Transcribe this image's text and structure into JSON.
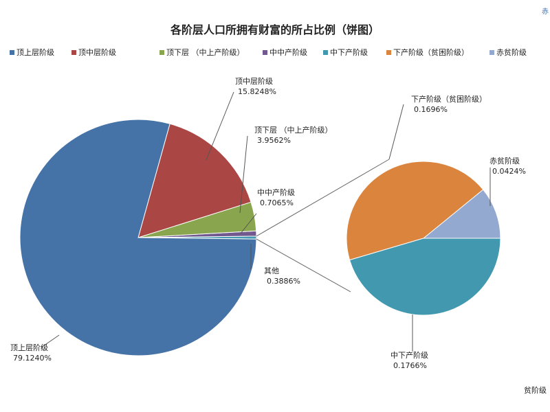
{
  "chart_data": {
    "type": "pie",
    "title": "各阶层人口所拥有财富的所占比例（饼图）",
    "legend": [
      "顶上层阶级",
      "顶中层阶级",
      "顶下层 （中上产阶级）",
      "中中产阶级",
      "中下产阶级",
      "下产阶级（贫困阶级）",
      "赤贫阶级"
    ],
    "legend_placement": "top",
    "main_pie": {
      "slices": [
        {
          "label": "顶上层阶级",
          "value_text": "79.1240%",
          "value": 79.124,
          "color": "#4572A7"
        },
        {
          "label": "顶中层阶级",
          "value_text": "15.8248%",
          "value": 15.8248,
          "color": "#AA4643"
        },
        {
          "label": "顶下层 （中上产阶级）",
          "value_text": "3.9562%",
          "value": 3.9562,
          "color": "#89A54E"
        },
        {
          "label": "中中产阶级",
          "value_text": "0.7065%",
          "value": 0.7065,
          "color": "#71588F"
        },
        {
          "label": "其他",
          "value_text": "0.3886%",
          "value": 0.3886,
          "color": "#4198AF"
        }
      ]
    },
    "secondary_pie": {
      "slices": [
        {
          "label": "中下产阶级",
          "value_text": "0.1766%",
          "value": 0.1766,
          "color": "#4198AF"
        },
        {
          "label": "下产阶级（贫困阶级）",
          "value_text": "0.1696%",
          "value": 0.1696,
          "color": "#DB843D"
        },
        {
          "label": "赤贫阶级",
          "value_text": "0.0424%",
          "value": 0.0424,
          "color": "#93A9CF"
        }
      ]
    },
    "legend_colors": [
      "#4572A7",
      "#AA4643",
      "#89A54E",
      "#71588F",
      "#4198AF",
      "#DB843D",
      "#93A9CF"
    ]
  },
  "fragments": {
    "corner_top": "赤",
    "corner_bottom": "贫阶级"
  }
}
